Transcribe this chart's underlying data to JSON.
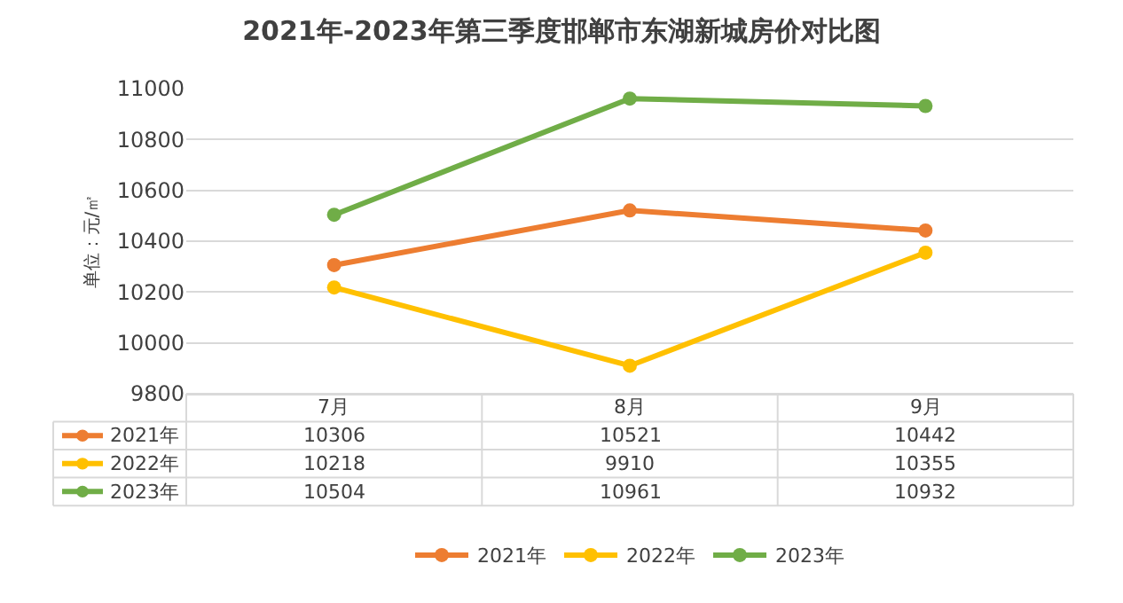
{
  "chart_data": {
    "type": "line",
    "title": "2021年-2023年第三季度邯郸市东湖新城房价对比图",
    "ylabel": "单位：元/㎡",
    "categories": [
      "7月",
      "8月",
      "9月"
    ],
    "series": [
      {
        "name": "2021年",
        "color": "#ed7d31",
        "values": [
          10306,
          10521,
          10442
        ]
      },
      {
        "name": "2022年",
        "color": "#ffc000",
        "values": [
          10218,
          9910,
          10355
        ]
      },
      {
        "name": "2023年",
        "color": "#70ad47",
        "values": [
          10504,
          10961,
          10932
        ]
      }
    ],
    "ylim": [
      9800,
      11000
    ],
    "yticks": [
      9800,
      10000,
      10200,
      10400,
      10600,
      10800,
      11000
    ],
    "grid": "y",
    "legend": "bottom",
    "marker": "circle",
    "line_style": "solid",
    "data_labels": true
  }
}
